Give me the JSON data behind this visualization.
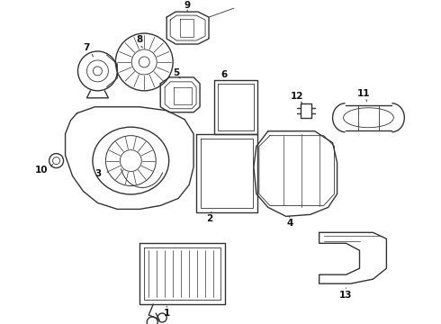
{
  "bg_color": "#ffffff",
  "line_color": "#333333",
  "label_color": "#111111",
  "fig_width": 4.9,
  "fig_height": 3.6,
  "dpi": 100,
  "label_fs": 7.5,
  "lw": 1.0
}
